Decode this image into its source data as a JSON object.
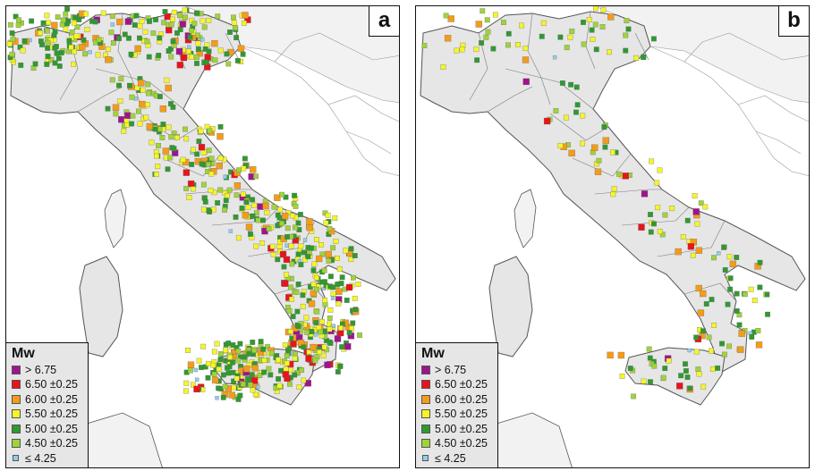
{
  "panels": [
    {
      "id": "a",
      "label": "a",
      "density": 1.0
    },
    {
      "id": "b",
      "label": "b",
      "density": 0.22
    }
  ],
  "legend": {
    "title": "Mw",
    "items": [
      {
        "label": "> 6.75",
        "color": "#a0138e"
      },
      {
        "label": "6.50 ±0.25",
        "color": "#e8141c"
      },
      {
        "label": "6.00 ±0.25",
        "color": "#f39c1a"
      },
      {
        "label": "5.50 ±0.25",
        "color": "#f5f52a"
      },
      {
        "label": "5.00 ±0.25",
        "color": "#2f9a2f"
      },
      {
        "label": "4.50 ±0.25",
        "color": "#9fd33a"
      },
      {
        "label": "≤ 4.25",
        "color": "#8fd0ee"
      }
    ]
  },
  "colors": {
    "land": "#e6e6e6",
    "coast": "#555555",
    "border": "#9a9a9a",
    "sea": "#ffffff"
  }
}
